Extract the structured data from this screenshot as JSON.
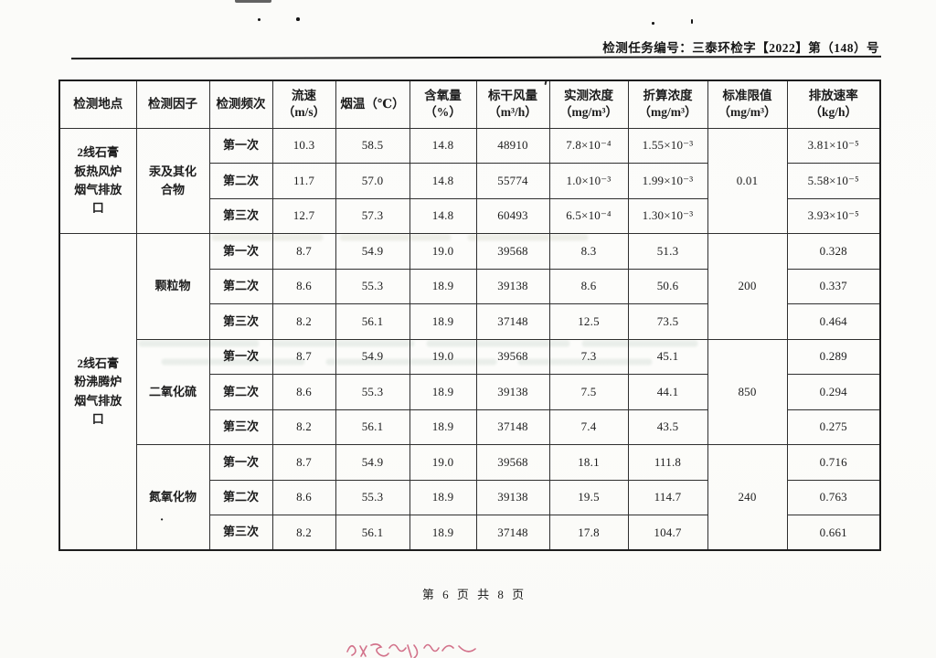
{
  "page": {
    "task_number": "检测任务编号：三泰环检字【2022】第（148）号",
    "footer": "第 6 页 共 8 页"
  },
  "colors": {
    "ink": "#1c1c1c",
    "table_border": "#2f2f2f",
    "handwriting_red": "#c9506f"
  },
  "artifacts": {
    "handwriting_mark": "red handwritten annotation, cut off at bottom edge",
    "stray_dot": "·"
  },
  "table": {
    "headers": [
      "检测地点",
      "检测因子",
      "检测频次",
      "流速\n（m/s）",
      "烟温（℃）",
      "含氧量\n（%）",
      "标干风量\n（m³/h）",
      "实测浓度\n（mg/m³）",
      "折算浓度\n（mg/m³）",
      "标准限值\n（mg/m³）",
      "排放速率\n（kg/h）"
    ],
    "locations": [
      {
        "name": "2线石膏\n板热风炉\n烟气排放\n口",
        "rowspan": 3
      },
      {
        "name": "2线石膏\n粉沸腾炉\n烟气排放\n口",
        "rowspan": 9
      }
    ],
    "factors": [
      {
        "name": "汞及其化\n合物",
        "limit": "0.01",
        "rows": [
          {
            "freq": "第一次",
            "values": [
              "10.3",
              "58.5",
              "14.8",
              "48910",
              "7.8×10⁻⁴",
              "1.55×10⁻³"
            ],
            "rate": "3.81×10⁻⁵"
          },
          {
            "freq": "第二次",
            "values": [
              "11.7",
              "57.0",
              "14.8",
              "55774",
              "1.0×10⁻³",
              "1.99×10⁻³"
            ],
            "rate": "5.58×10⁻⁵"
          },
          {
            "freq": "第三次",
            "values": [
              "12.7",
              "57.3",
              "14.8",
              "60493",
              "6.5×10⁻⁴",
              "1.30×10⁻³"
            ],
            "rate": "3.93×10⁻⁵"
          }
        ]
      },
      {
        "name": "颗粒物",
        "limit": "200",
        "rows": [
          {
            "freq": "第一次",
            "values": [
              "8.7",
              "54.9",
              "19.0",
              "39568",
              "8.3",
              "51.3"
            ],
            "rate": "0.328"
          },
          {
            "freq": "第二次",
            "values": [
              "8.6",
              "55.3",
              "18.9",
              "39138",
              "8.6",
              "50.6"
            ],
            "rate": "0.337"
          },
          {
            "freq": "第三次",
            "values": [
              "8.2",
              "56.1",
              "18.9",
              "37148",
              "12.5",
              "73.5"
            ],
            "rate": "0.464"
          }
        ]
      },
      {
        "name": "二氧化硫",
        "limit": "850",
        "rows": [
          {
            "freq": "第一次",
            "values": [
              "8.7",
              "54.9",
              "19.0",
              "39568",
              "7.3",
              "45.1"
            ],
            "rate": "0.289"
          },
          {
            "freq": "第二次",
            "values": [
              "8.6",
              "55.3",
              "18.9",
              "39138",
              "7.5",
              "44.1"
            ],
            "rate": "0.294"
          },
          {
            "freq": "第三次",
            "values": [
              "8.2",
              "56.1",
              "18.9",
              "37148",
              "7.4",
              "43.5"
            ],
            "rate": "0.275"
          }
        ]
      },
      {
        "name": "氮氧化物",
        "stray_mark": "·",
        "limit": "240",
        "rows": [
          {
            "freq": "第一次",
            "values": [
              "8.7",
              "54.9",
              "19.0",
              "39568",
              "18.1",
              "111.8"
            ],
            "rate": "0.716"
          },
          {
            "freq": "第二次",
            "values": [
              "8.6",
              "55.3",
              "18.9",
              "39138",
              "19.5",
              "114.7"
            ],
            "rate": "0.763"
          },
          {
            "freq": "第三次",
            "values": [
              "8.2",
              "56.1",
              "18.9",
              "37148",
              "17.8",
              "104.7"
            ],
            "rate": "0.661"
          }
        ]
      }
    ]
  }
}
